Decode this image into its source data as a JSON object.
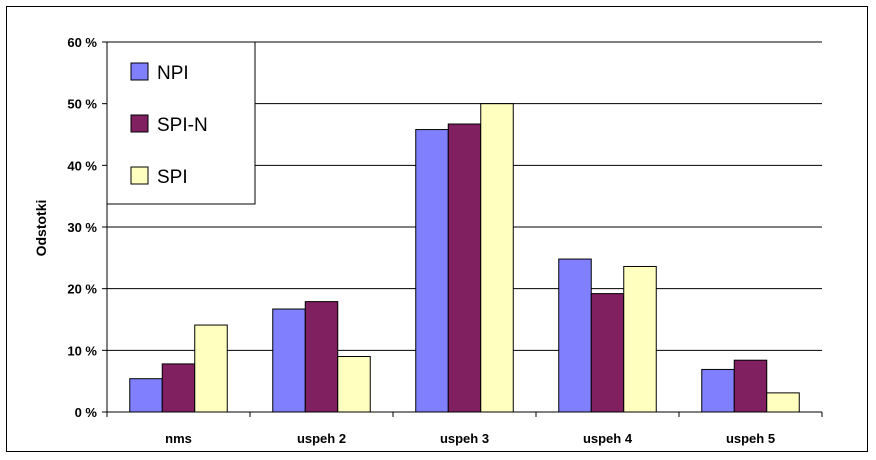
{
  "chart_data": {
    "type": "bar",
    "title": "",
    "xlabel": "",
    "ylabel": "Odstotki",
    "ylim": [
      0,
      60
    ],
    "yticks": [
      0,
      10,
      20,
      30,
      40,
      50,
      60
    ],
    "ytick_labels": [
      "0 %",
      "10 %",
      "20 %",
      "30 %",
      "40 %",
      "50 %",
      "60 %"
    ],
    "categories": [
      "nms",
      "uspeh 2",
      "uspeh 3",
      "uspeh 4",
      "uspeh 5"
    ],
    "series": [
      {
        "name": "NPI",
        "color": "#8080ff",
        "values": [
          5.4,
          16.7,
          45.8,
          24.8,
          6.9
        ]
      },
      {
        "name": "SPI-N",
        "color": "#802060",
        "values": [
          7.8,
          17.9,
          46.7,
          19.2,
          8.4
        ]
      },
      {
        "name": "SPI",
        "color": "#ffffc0",
        "values": [
          14.1,
          9.0,
          50.0,
          23.6,
          3.1
        ]
      }
    ],
    "grid": true,
    "legend_position": "top-left"
  }
}
